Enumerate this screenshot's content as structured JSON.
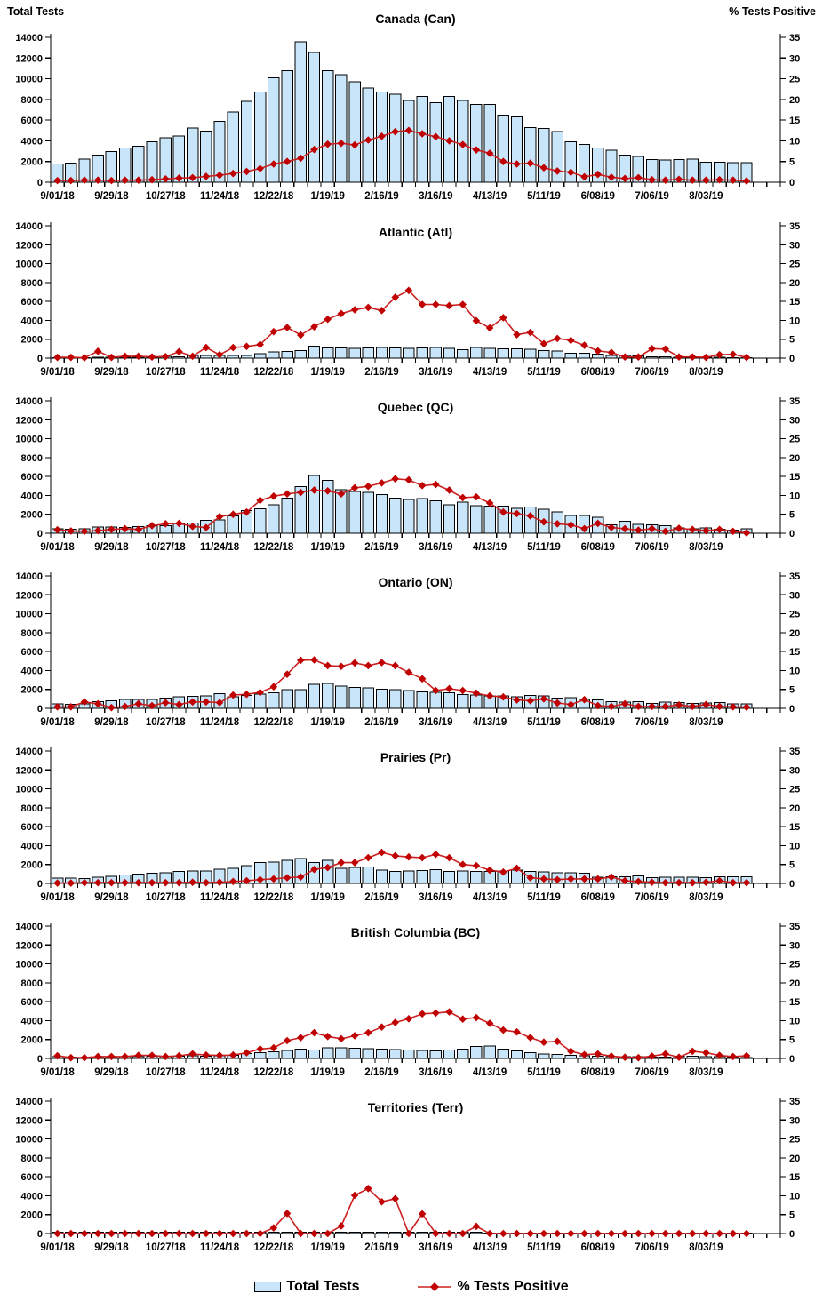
{
  "axes": {
    "left_title": "Total Tests",
    "right_title": "% Tests Positive",
    "left_ticks": [
      0,
      2000,
      4000,
      6000,
      8000,
      10000,
      12000,
      14000
    ],
    "right_ticks": [
      0,
      5,
      10,
      15,
      20,
      25,
      30,
      35
    ],
    "x_tick_labels": [
      "9/01/18",
      "9/29/18",
      "10/27/18",
      "11/24/18",
      "12/22/18",
      "1/19/19",
      "2/16/19",
      "3/16/19",
      "4/13/19",
      "5/11/19",
      "6/08/19",
      "7/06/19",
      "8/03/19"
    ],
    "weeks_per_label": 4
  },
  "legend": {
    "bar_label": "Total Tests",
    "line_label": "% Tests Positive"
  },
  "colors": {
    "bar_fill": "#C9E5F9",
    "bar_stroke": "#000000",
    "line": "#CC2020",
    "marker": "#C00000",
    "axis": "#000000",
    "text": "#000000"
  },
  "chart_data": [
    {
      "id": "canada",
      "title": "Canada (Can)",
      "type": "bar",
      "show_corner_titles": true,
      "left_axis": {
        "label": "Total Tests",
        "min": 0,
        "max": 14000,
        "tick_step": 2000
      },
      "right_axis": {
        "label": "% Tests Positive",
        "min": 0,
        "max": 35,
        "tick_step": 5
      },
      "series": [
        {
          "name": "Total Tests",
          "kind": "bar",
          "axis": "left",
          "values": [
            1750,
            1850,
            2250,
            2600,
            2950,
            3300,
            3500,
            3900,
            4300,
            4450,
            5250,
            4950,
            5900,
            6800,
            7800,
            8700,
            10100,
            10800,
            13550,
            12550,
            10800,
            10400,
            9700,
            9100,
            8700,
            8500,
            7900,
            8300,
            7700,
            8300,
            7900,
            7500,
            7500,
            6500,
            6300,
            5300,
            5200,
            4900,
            3900,
            3650,
            3300,
            3100,
            2600,
            2500,
            2200,
            2150,
            2200,
            2250,
            1950,
            1950,
            1900,
            1900
          ]
        },
        {
          "name": "% Tests Positive",
          "kind": "line",
          "axis": "right",
          "values": [
            0.4,
            0.4,
            0.5,
            0.5,
            0.4,
            0.5,
            0.5,
            0.6,
            0.8,
            1.0,
            1.1,
            1.4,
            1.7,
            2.1,
            2.6,
            3.3,
            4.4,
            5.0,
            5.8,
            7.9,
            9.2,
            9.4,
            9.0,
            10.2,
            11.1,
            12.2,
            12.5,
            11.7,
            11.0,
            10.0,
            9.1,
            7.8,
            7.0,
            5.0,
            4.4,
            4.6,
            3.5,
            2.7,
            2.4,
            1.3,
            1.9,
            1.2,
            0.9,
            1.1,
            0.6,
            0.5,
            0.7,
            0.5,
            0.5,
            0.6,
            0.5,
            0.3
          ]
        }
      ]
    },
    {
      "id": "atlantic",
      "title": "Atlantic (Atl)",
      "type": "bar",
      "show_corner_titles": false,
      "left_axis": {
        "label": "Total Tests",
        "min": 0,
        "max": 14000,
        "tick_step": 2000
      },
      "right_axis": {
        "label": "% Tests Positive",
        "min": 0,
        "max": 35,
        "tick_step": 5
      },
      "series": [
        {
          "name": "Total Tests",
          "kind": "bar",
          "axis": "left",
          "values": [
            50,
            60,
            60,
            90,
            80,
            100,
            110,
            100,
            200,
            150,
            300,
            280,
            280,
            300,
            300,
            450,
            650,
            700,
            800,
            1250,
            1100,
            1100,
            1050,
            1100,
            1150,
            1100,
            1050,
            1100,
            1150,
            1050,
            900,
            1150,
            1050,
            1000,
            1000,
            950,
            800,
            750,
            500,
            500,
            400,
            300,
            280,
            250,
            150,
            120,
            100,
            100,
            80,
            80,
            60,
            50
          ]
        },
        {
          "name": "% Tests Positive",
          "kind": "line",
          "axis": "right",
          "values": [
            0.2,
            0.2,
            0.1,
            1.8,
            0.2,
            0.5,
            0.5,
            0.3,
            0.4,
            1.7,
            0.5,
            2.8,
            0.9,
            2.8,
            3.1,
            3.6,
            7.0,
            8.1,
            6.1,
            8.3,
            10.3,
            11.8,
            12.8,
            13.4,
            12.6,
            16.1,
            17.9,
            14.2,
            14.2,
            13.9,
            14.2,
            9.9,
            8.0,
            10.7,
            6.2,
            6.8,
            3.8,
            5.2,
            4.7,
            3.4,
            1.9,
            1.5,
            0.3,
            0.3,
            2.5,
            2.4,
            0.3,
            0.3,
            0.2,
            0.9,
            1.0,
            0.2
          ]
        }
      ]
    },
    {
      "id": "quebec",
      "title": "Quebec (QC)",
      "type": "bar",
      "show_corner_titles": false,
      "left_axis": {
        "label": "Total Tests",
        "min": 0,
        "max": 14000,
        "tick_step": 2000
      },
      "right_axis": {
        "label": "% Tests Positive",
        "min": 0,
        "max": 35,
        "tick_step": 5
      },
      "series": [
        {
          "name": "Total Tests",
          "kind": "bar",
          "axis": "left",
          "values": [
            450,
            400,
            450,
            650,
            650,
            600,
            700,
            800,
            800,
            1050,
            1100,
            1350,
            1400,
            1850,
            2400,
            2600,
            3000,
            3700,
            4950,
            6100,
            5600,
            4600,
            4400,
            4300,
            4100,
            3700,
            3550,
            3650,
            3450,
            3000,
            3300,
            2900,
            2850,
            2850,
            2650,
            2750,
            2550,
            2250,
            1900,
            1900,
            1700,
            900,
            1250,
            950,
            900,
            800,
            550,
            450,
            550,
            400,
            350,
            450
          ]
        },
        {
          "name": "% Tests Positive",
          "kind": "line",
          "axis": "right",
          "values": [
            0.9,
            0.6,
            0.5,
            0.7,
            1.0,
            1.2,
            1.0,
            2.0,
            2.5,
            2.6,
            1.8,
            1.5,
            4.4,
            5.0,
            5.6,
            8.7,
            9.8,
            10.4,
            10.8,
            11.4,
            11.2,
            10.4,
            12.0,
            12.4,
            13.3,
            14.4,
            14.1,
            12.6,
            12.9,
            11.4,
            9.4,
            9.6,
            8.0,
            5.6,
            5.2,
            4.6,
            3.0,
            2.5,
            2.2,
            1.2,
            2.6,
            1.5,
            1.2,
            0.8,
            1.2,
            0.5,
            1.3,
            1.0,
            0.7,
            1.0,
            0.5,
            0.1
          ]
        }
      ]
    },
    {
      "id": "ontario",
      "title": "Ontario (ON)",
      "type": "bar",
      "show_corner_titles": false,
      "left_axis": {
        "label": "Total Tests",
        "min": 0,
        "max": 14000,
        "tick_step": 2000
      },
      "right_axis": {
        "label": "% Tests Positive",
        "min": 0,
        "max": 35,
        "tick_step": 5
      },
      "series": [
        {
          "name": "Total Tests",
          "kind": "bar",
          "axis": "left",
          "values": [
            450,
            400,
            450,
            700,
            800,
            950,
            950,
            950,
            1100,
            1200,
            1250,
            1300,
            1550,
            1200,
            1350,
            1500,
            1650,
            1950,
            1950,
            2550,
            2650,
            2350,
            2200,
            2150,
            2000,
            1950,
            1900,
            1750,
            1700,
            1650,
            1450,
            1400,
            1300,
            1300,
            1200,
            1350,
            1300,
            1100,
            1150,
            950,
            900,
            700,
            650,
            700,
            500,
            650,
            600,
            500,
            550,
            600,
            450,
            450
          ]
        },
        {
          "name": "% Tests Positive",
          "kind": "line",
          "axis": "right",
          "values": [
            0.4,
            0.4,
            1.7,
            1.2,
            0.2,
            0.5,
            1.2,
            0.7,
            1.5,
            1.0,
            1.7,
            1.7,
            1.5,
            3.5,
            3.7,
            4.2,
            5.7,
            9.0,
            12.7,
            12.8,
            11.3,
            11.1,
            12.0,
            11.3,
            12.1,
            11.3,
            9.5,
            7.8,
            4.7,
            5.2,
            4.7,
            4.0,
            3.3,
            3.0,
            2.2,
            2.0,
            2.5,
            1.4,
            1.0,
            2.3,
            0.7,
            0.5,
            1.2,
            0.5,
            0.5,
            0.5,
            0.9,
            0.5,
            1.0,
            0.5,
            0.4,
            0.3
          ]
        }
      ]
    },
    {
      "id": "prairies",
      "title": "Prairies (Pr)",
      "type": "bar",
      "show_corner_titles": false,
      "left_axis": {
        "label": "Total Tests",
        "min": 0,
        "max": 14000,
        "tick_step": 2000
      },
      "right_axis": {
        "label": "% Tests Positive",
        "min": 0,
        "max": 35,
        "tick_step": 5
      },
      "series": [
        {
          "name": "Total Tests",
          "kind": "bar",
          "axis": "left",
          "values": [
            550,
            550,
            500,
            650,
            750,
            900,
            1000,
            1100,
            1150,
            1250,
            1300,
            1300,
            1500,
            1600,
            1900,
            2200,
            2250,
            2450,
            2650,
            2200,
            2450,
            1600,
            1700,
            1750,
            1400,
            1250,
            1300,
            1350,
            1450,
            1250,
            1300,
            1250,
            1250,
            1300,
            1400,
            1250,
            1200,
            1150,
            1150,
            1100,
            650,
            700,
            700,
            800,
            600,
            650,
            650,
            650,
            600,
            700,
            700,
            700
          ]
        },
        {
          "name": "% Tests Positive",
          "kind": "line",
          "axis": "right",
          "values": [
            0.1,
            0.1,
            0.2,
            0.2,
            0.2,
            0.2,
            0.2,
            0.2,
            0.2,
            0.2,
            0.3,
            0.2,
            0.3,
            0.5,
            0.7,
            1.0,
            1.2,
            1.5,
            1.7,
            3.7,
            4.2,
            5.5,
            5.5,
            6.8,
            8.2,
            7.3,
            7.0,
            6.8,
            7.7,
            6.8,
            5.0,
            4.7,
            3.5,
            3.0,
            4.0,
            1.5,
            1.2,
            1.0,
            1.2,
            1.2,
            1.2,
            1.7,
            0.7,
            0.5,
            0.3,
            0.2,
            0.2,
            0.2,
            0.3,
            0.7,
            0.2,
            0.2
          ]
        }
      ]
    },
    {
      "id": "british-columbia",
      "title": "British Columbia (BC)",
      "type": "bar",
      "show_corner_titles": false,
      "left_axis": {
        "label": "Total Tests",
        "min": 0,
        "max": 14000,
        "tick_step": 2000
      },
      "right_axis": {
        "label": "% Tests Positive",
        "min": 0,
        "max": 35,
        "tick_step": 5
      },
      "series": [
        {
          "name": "Total Tests",
          "kind": "bar",
          "axis": "left",
          "values": [
            200,
            150,
            100,
            150,
            150,
            200,
            200,
            250,
            200,
            250,
            300,
            250,
            300,
            350,
            500,
            600,
            700,
            850,
            1000,
            900,
            1150,
            1150,
            1100,
            1050,
            1000,
            950,
            900,
            850,
            800,
            900,
            1000,
            1250,
            1300,
            1000,
            800,
            600,
            450,
            400,
            350,
            300,
            250,
            200,
            200,
            180,
            150,
            150,
            250,
            250,
            200,
            180,
            150,
            100
          ]
        },
        {
          "name": "% Tests Positive",
          "kind": "line",
          "axis": "right",
          "values": [
            0.7,
            0.2,
            0.2,
            0.5,
            0.5,
            0.5,
            0.8,
            0.8,
            0.5,
            0.7,
            1.2,
            0.9,
            0.8,
            0.9,
            1.5,
            2.5,
            2.8,
            4.7,
            5.5,
            6.8,
            5.8,
            5.2,
            6.0,
            6.8,
            8.3,
            9.5,
            10.5,
            11.8,
            12.0,
            12.3,
            10.4,
            10.8,
            9.3,
            7.5,
            7.0,
            5.5,
            4.3,
            4.5,
            1.9,
            1.0,
            1.2,
            0.6,
            0.3,
            0.2,
            0.6,
            1.2,
            0.3,
            1.9,
            1.5,
            0.8,
            0.5,
            0.7
          ]
        }
      ]
    },
    {
      "id": "territories",
      "title": "Territories (Terr)",
      "type": "bar",
      "show_corner_titles": false,
      "left_axis": {
        "label": "Total Tests",
        "min": 0,
        "max": 14000,
        "tick_step": 2000
      },
      "right_axis": {
        "label": "% Tests Positive",
        "min": 0,
        "max": 35,
        "tick_step": 5
      },
      "series": [
        {
          "name": "Total Tests",
          "kind": "bar",
          "axis": "left",
          "values": [
            120,
            120,
            120,
            120,
            120,
            120,
            120,
            120,
            120,
            120,
            120,
            120,
            120,
            120,
            120,
            120,
            120,
            120,
            120,
            120,
            120,
            120,
            120,
            120,
            120,
            120,
            120,
            120,
            120,
            120,
            120,
            120,
            60,
            60,
            60,
            60,
            60,
            60,
            60,
            60,
            60,
            60,
            60,
            60,
            30,
            30,
            30,
            30,
            30,
            30,
            30,
            30
          ]
        },
        {
          "name": "% Tests Positive",
          "kind": "line",
          "axis": "right",
          "values": [
            0,
            0,
            0,
            0,
            0,
            0,
            0,
            0,
            0,
            0,
            0,
            0,
            0,
            0,
            0,
            0,
            1.5,
            5.3,
            0,
            0,
            0,
            2.0,
            10.1,
            11.9,
            8.4,
            9.2,
            0,
            5.2,
            0,
            0,
            0,
            1.9,
            0,
            0,
            0,
            0,
            0,
            0,
            0,
            0,
            0,
            0,
            0,
            0,
            0,
            0,
            0,
            0,
            0,
            0,
            0,
            0
          ]
        }
      ]
    }
  ]
}
